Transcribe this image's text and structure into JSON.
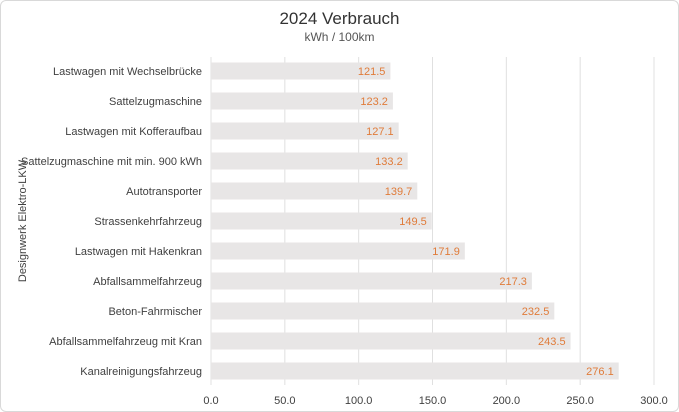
{
  "chart_data": {
    "type": "bar",
    "orientation": "horizontal",
    "title": "2024 Verbrauch",
    "subtitle": "kWh / 100km",
    "ylabel": "Designwerk Elektro-LKW",
    "xlabel": "",
    "categories": [
      "Lastwagen mit Wechselbrücke",
      "Sattelzugmaschine",
      "Lastwagen mit Kofferaufbau",
      "Sattelzugmaschine mit min. 900 kWh",
      "Autotransporter",
      "Strassenkehrfahrzeug",
      "Lastwagen mit Hakenkran",
      "Abfallsammelfahrzeug",
      "Beton-Fahrmischer",
      "Abfallsammelfahrzeug mit Kran",
      "Kanalreinigungsfahrzeug"
    ],
    "values": [
      121.5,
      123.2,
      127.1,
      133.2,
      139.7,
      149.5,
      171.9,
      217.3,
      232.5,
      243.5,
      276.1
    ],
    "value_labels": [
      "121.5",
      "123.2",
      "127.1",
      "133.2",
      "139.7",
      "149.5",
      "171.9",
      "217.3",
      "232.5",
      "243.5",
      "276.1"
    ],
    "xlim": [
      0,
      300
    ],
    "xticks": [
      "0.0",
      "50.0",
      "100.0",
      "150.0",
      "200.0",
      "250.0",
      "300.0"
    ],
    "grid": true,
    "colors": {
      "bar": "#e8e6e6",
      "value_label": "#e07b39",
      "grid": "#e0e0e0",
      "text": "#404040"
    }
  }
}
